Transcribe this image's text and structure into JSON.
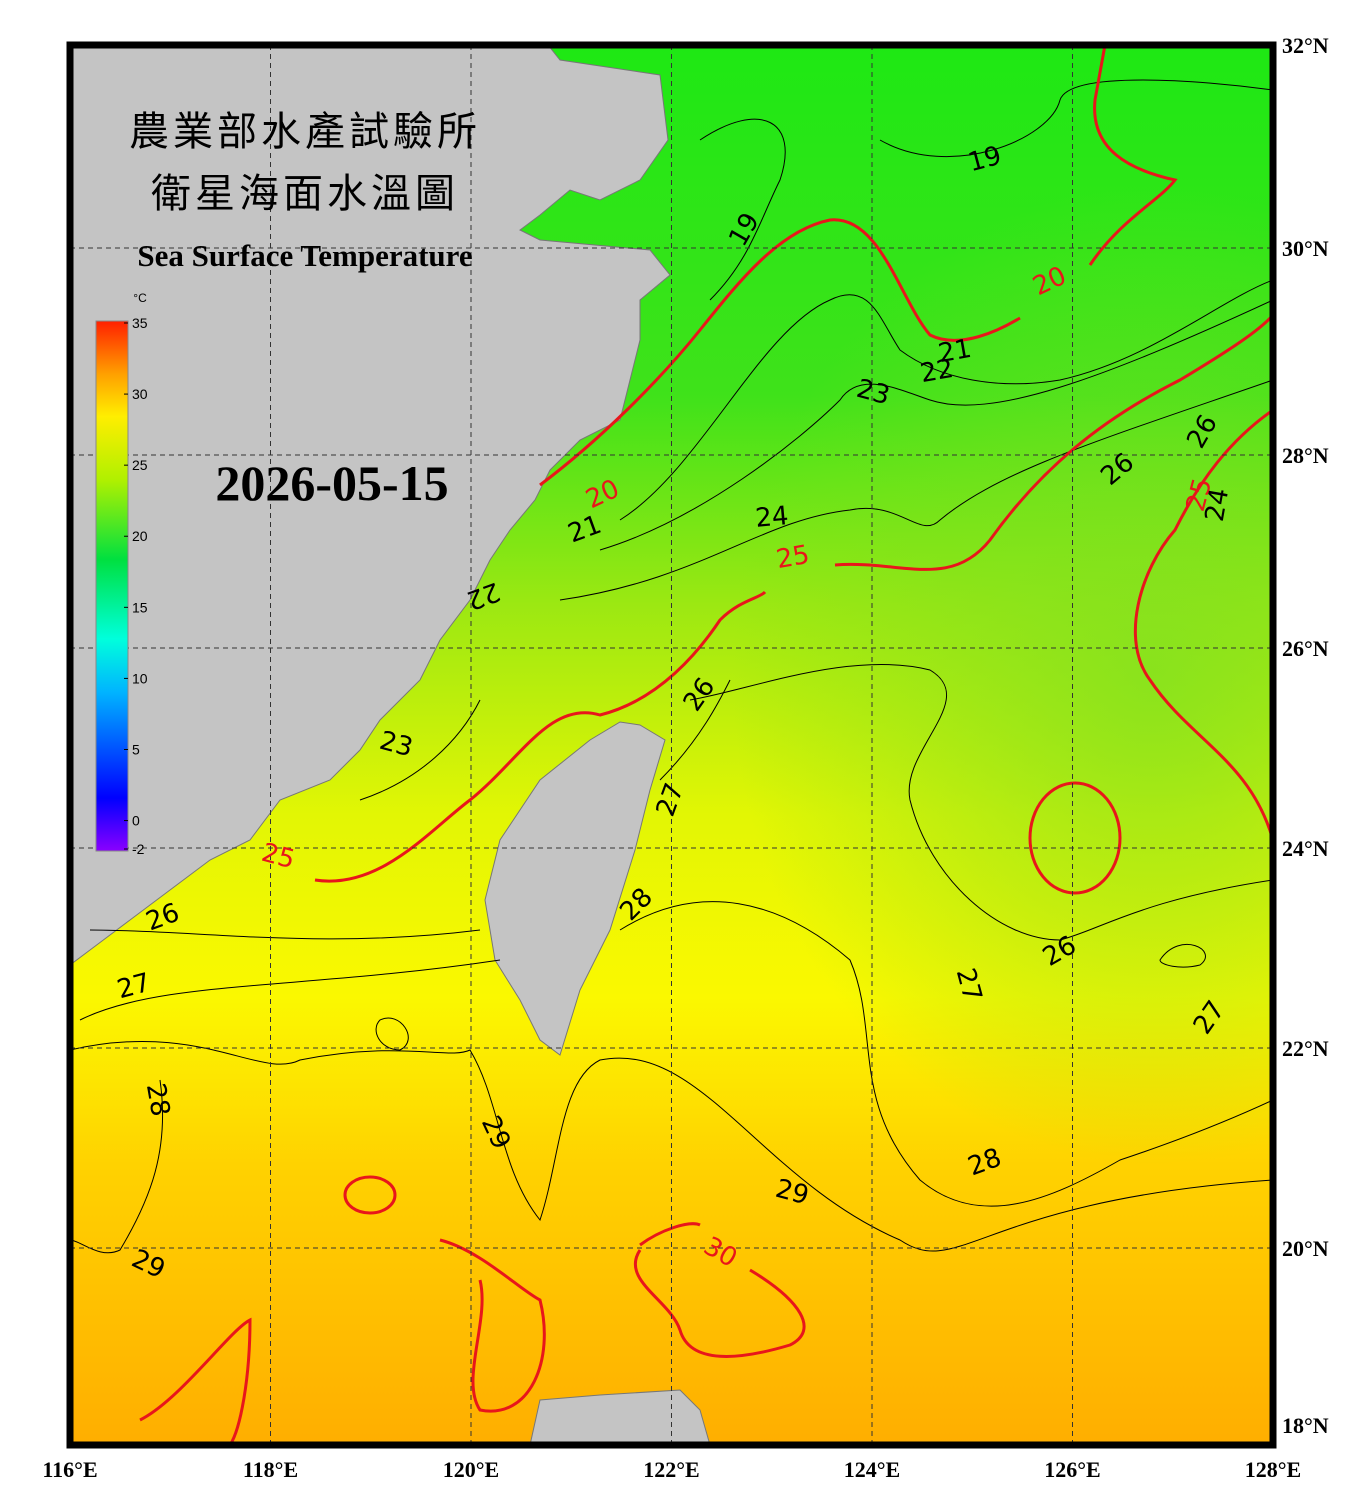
{
  "header": {
    "title_zh_1": "農業部水產試驗所",
    "title_zh_2": "衛星海面水溫圖",
    "title_en": "Sea Surface Temperature",
    "date": "2026-05-15"
  },
  "colorbar": {
    "unit": "°C",
    "lim": [
      -2,
      35
    ],
    "ticks": [
      35,
      30,
      25,
      20,
      15,
      10,
      5,
      0,
      -2
    ]
  },
  "lon_labels": [
    "116°E",
    "118°E",
    "120°E",
    "122°E",
    "124°E",
    "126°E",
    "128°E"
  ],
  "lat_labels": [
    "32°N",
    "30°N",
    "28°N",
    "26°N",
    "24°N",
    "22°N",
    "20°N",
    "18°N"
  ],
  "contour_labels": [
    19,
    19,
    20,
    21,
    22,
    23,
    26,
    26,
    25,
    24,
    20,
    21,
    24,
    25,
    22,
    26,
    23,
    27,
    25,
    28,
    26,
    27,
    27,
    26,
    27,
    28,
    29,
    28,
    29,
    30,
    29
  ]
}
